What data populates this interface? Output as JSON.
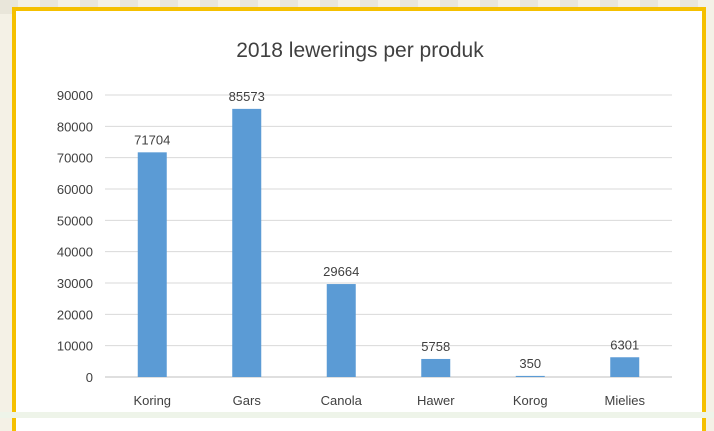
{
  "chart_data": {
    "type": "bar",
    "title": "2018 lewerings per produk",
    "categories": [
      "Koring",
      "Gars",
      "Canola",
      "Hawer",
      "Korog",
      "Mielies"
    ],
    "values": [
      71704,
      85573,
      29664,
      5758,
      350,
      6301
    ],
    "data_labels": [
      "71704",
      "85573",
      "29664",
      "5758",
      "350",
      "6301"
    ],
    "ylim": [
      0,
      90000
    ],
    "yticks": [
      0,
      10000,
      20000,
      30000,
      40000,
      50000,
      60000,
      70000,
      80000,
      90000
    ],
    "ytick_labels": [
      "0",
      "10000",
      "20000",
      "30000",
      "40000",
      "50000",
      "60000",
      "70000",
      "80000",
      "90000"
    ],
    "grid": true,
    "legend": "none",
    "colors": {
      "bar": "#5b9bd5",
      "grid": "#d9d9d9",
      "frame": "#f5c000",
      "text": "#404040"
    }
  }
}
